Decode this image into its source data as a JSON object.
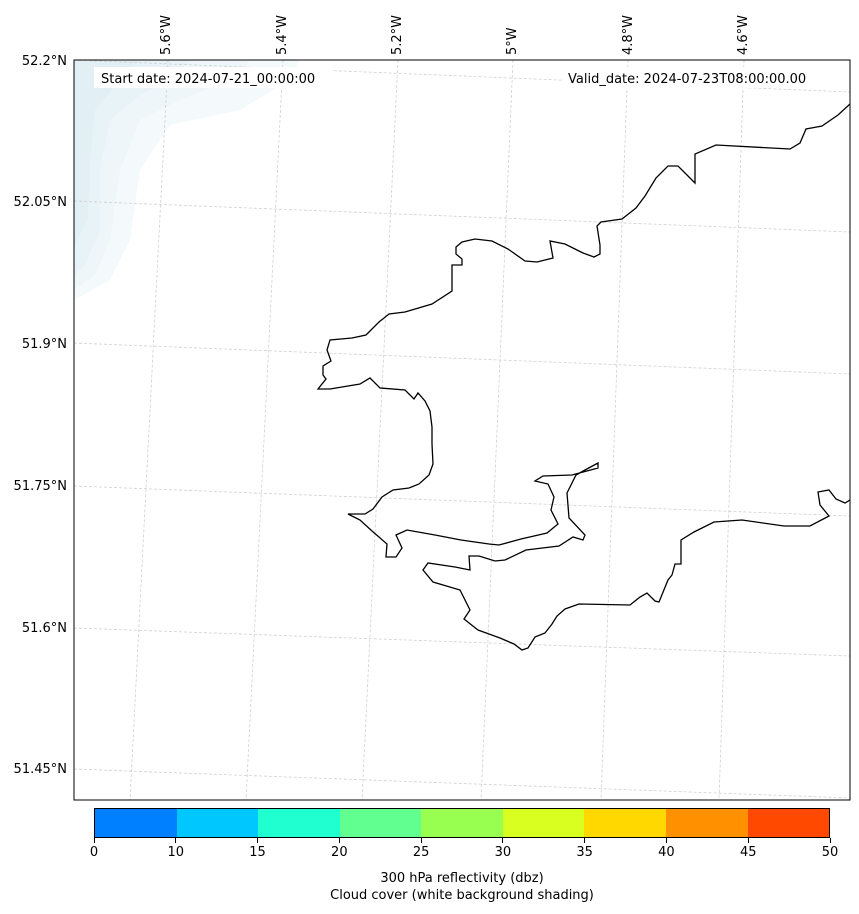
{
  "map": {
    "start_label": "Start date: 2024-07-21_00:00:00",
    "valid_label": "Valid_date: 2024-07-23T08:00:00.00",
    "lon_labels": [
      "5.6°W",
      "5.4°W",
      "5.2°W",
      "5°W",
      "4.8°W",
      "4.6°W"
    ],
    "lat_labels": [
      "52.2°N",
      "52.05°N",
      "51.9°N",
      "51.75°N",
      "51.6°N",
      "51.45°N"
    ],
    "region_description_features": [
      "coastline",
      "cloud-cover-shading",
      "graticule"
    ]
  },
  "colorbar": {
    "ticks": [
      "0",
      "10",
      "15",
      "20",
      "25",
      "30",
      "35",
      "40",
      "45",
      "50"
    ],
    "colors": [
      "#0080ff",
      "#00c8ff",
      "#20ffd0",
      "#60ff90",
      "#98ff50",
      "#d8ff20",
      "#ffd800",
      "#ff9000",
      "#ff4800"
    ],
    "caption_line1": "300 hPa reflectivity (dbz)",
    "caption_line2": "Cloud cover (white background shading)"
  }
}
